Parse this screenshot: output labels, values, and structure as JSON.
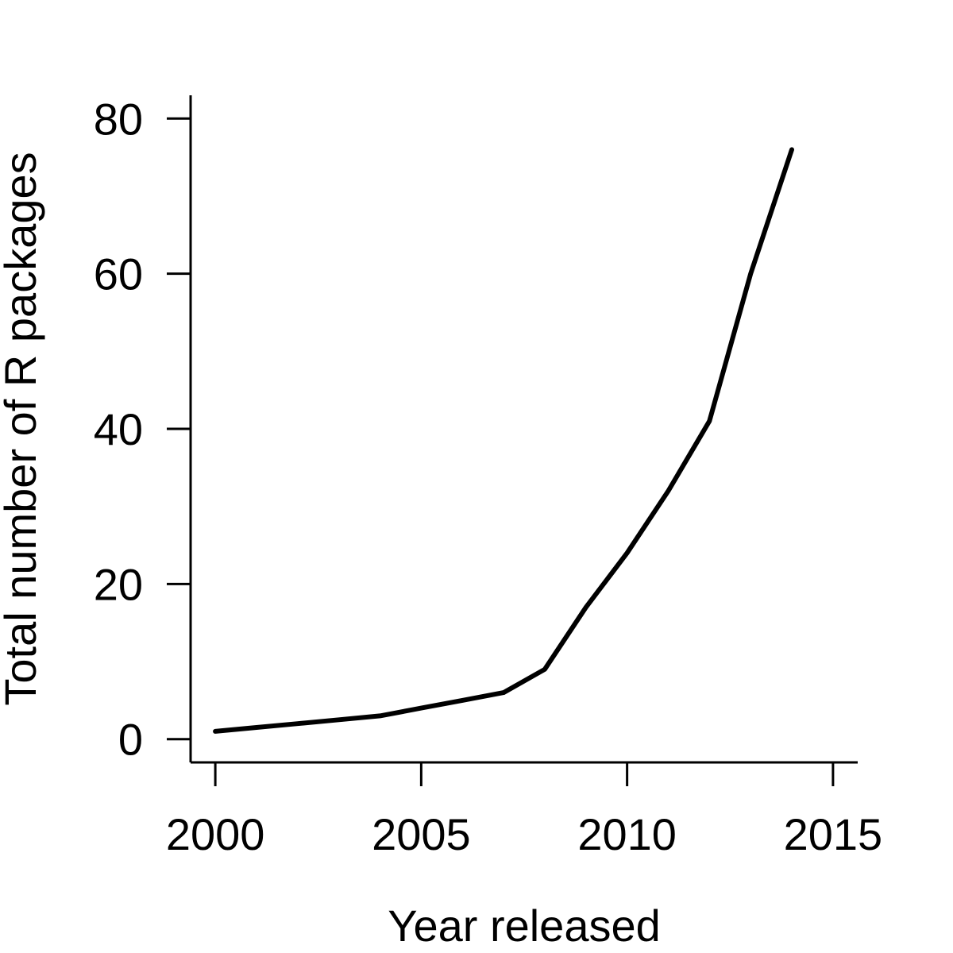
{
  "chart_data": {
    "type": "line",
    "title": "",
    "xlabel": "Year released",
    "ylabel": "Total number of R packages",
    "x_ticks": [
      2000,
      2005,
      2010,
      2015
    ],
    "y_ticks": [
      0,
      20,
      40,
      60,
      80
    ],
    "xlim": [
      1999.4,
      2015.6
    ],
    "ylim": [
      -3,
      83
    ],
    "grid": false,
    "legend": "none",
    "line_color": "#000000",
    "series": [
      {
        "x": [
          2000,
          2001,
          2002,
          2003,
          2004,
          2005,
          2006,
          2007,
          2008,
          2009,
          2010,
          2011,
          2012,
          2013,
          2014
        ],
        "values": [
          1,
          1.5,
          2,
          2.5,
          3,
          4,
          5,
          6,
          9,
          17,
          24,
          32,
          41,
          60,
          76
        ]
      }
    ]
  }
}
